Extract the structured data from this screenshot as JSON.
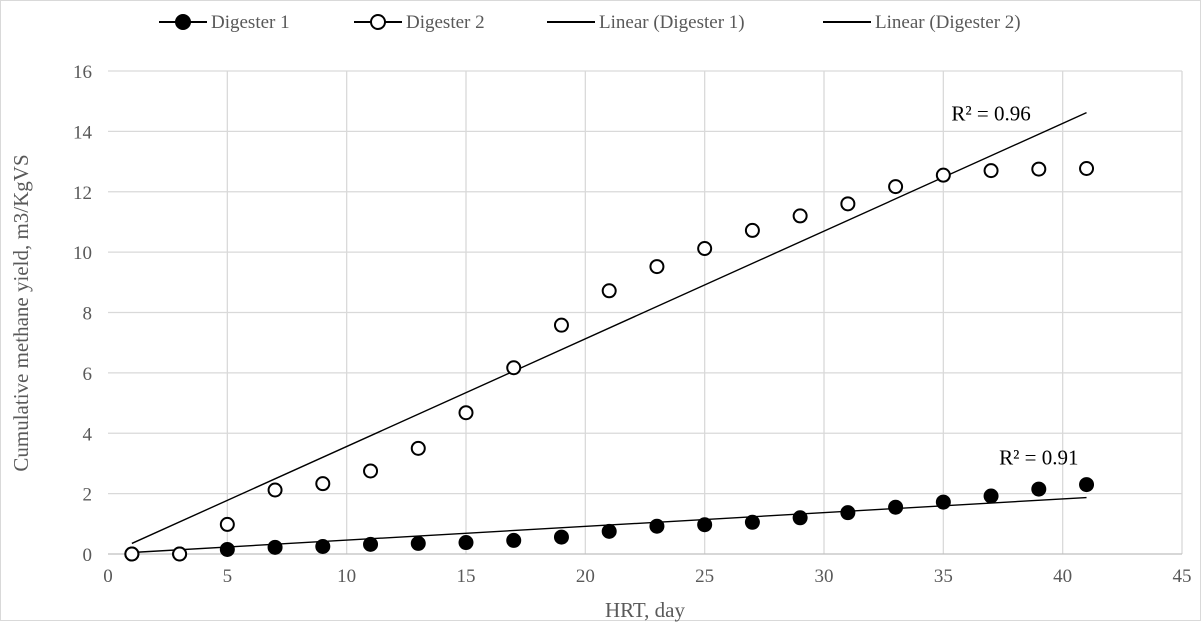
{
  "chart_data": {
    "type": "scatter",
    "title": "",
    "xlabel": "HRT, day",
    "ylabel": "Cumulative methane yield, m3/KgVS",
    "xlim": [
      0,
      45
    ],
    "ylim": [
      0,
      16
    ],
    "xticks": [
      0,
      5,
      10,
      15,
      20,
      25,
      30,
      35,
      40,
      45
    ],
    "yticks": [
      0,
      2,
      4,
      6,
      8,
      10,
      12,
      14,
      16
    ],
    "grid": true,
    "legend_position": "top",
    "x": [
      1,
      3,
      5,
      7,
      9,
      11,
      13,
      15,
      17,
      19,
      21,
      23,
      25,
      27,
      29,
      31,
      33,
      35,
      37,
      39,
      41
    ],
    "series": [
      {
        "name": "Digester 1",
        "marker": "filled-circle",
        "color": "#000000",
        "values": [
          0.0,
          0.0,
          0.15,
          0.22,
          0.25,
          0.32,
          0.35,
          0.38,
          0.45,
          0.56,
          0.75,
          0.92,
          0.97,
          1.05,
          1.2,
          1.37,
          1.55,
          1.72,
          1.92,
          2.15,
          2.3
        ]
      },
      {
        "name": "Digester 2",
        "marker": "open-circle",
        "color": "#000000",
        "values": [
          0.0,
          0.0,
          0.98,
          2.12,
          2.33,
          2.75,
          3.5,
          4.68,
          6.17,
          7.58,
          8.72,
          9.52,
          10.12,
          10.72,
          11.2,
          11.6,
          12.17,
          12.55,
          12.7,
          12.75,
          12.77
        ]
      }
    ],
    "trendlines": [
      {
        "name": "Linear (Digester 1)",
        "x": [
          1,
          41
        ],
        "y": [
          0.05,
          1.87
        ],
        "r2_label": "R² = 0.91",
        "r2_at": [
          39,
          3.2
        ]
      },
      {
        "name": "Linear (Digester 2)",
        "x": [
          1,
          41
        ],
        "y": [
          0.35,
          14.62
        ],
        "r2_label": "R² = 0.96",
        "r2_at": [
          37,
          14.6
        ]
      }
    ]
  }
}
